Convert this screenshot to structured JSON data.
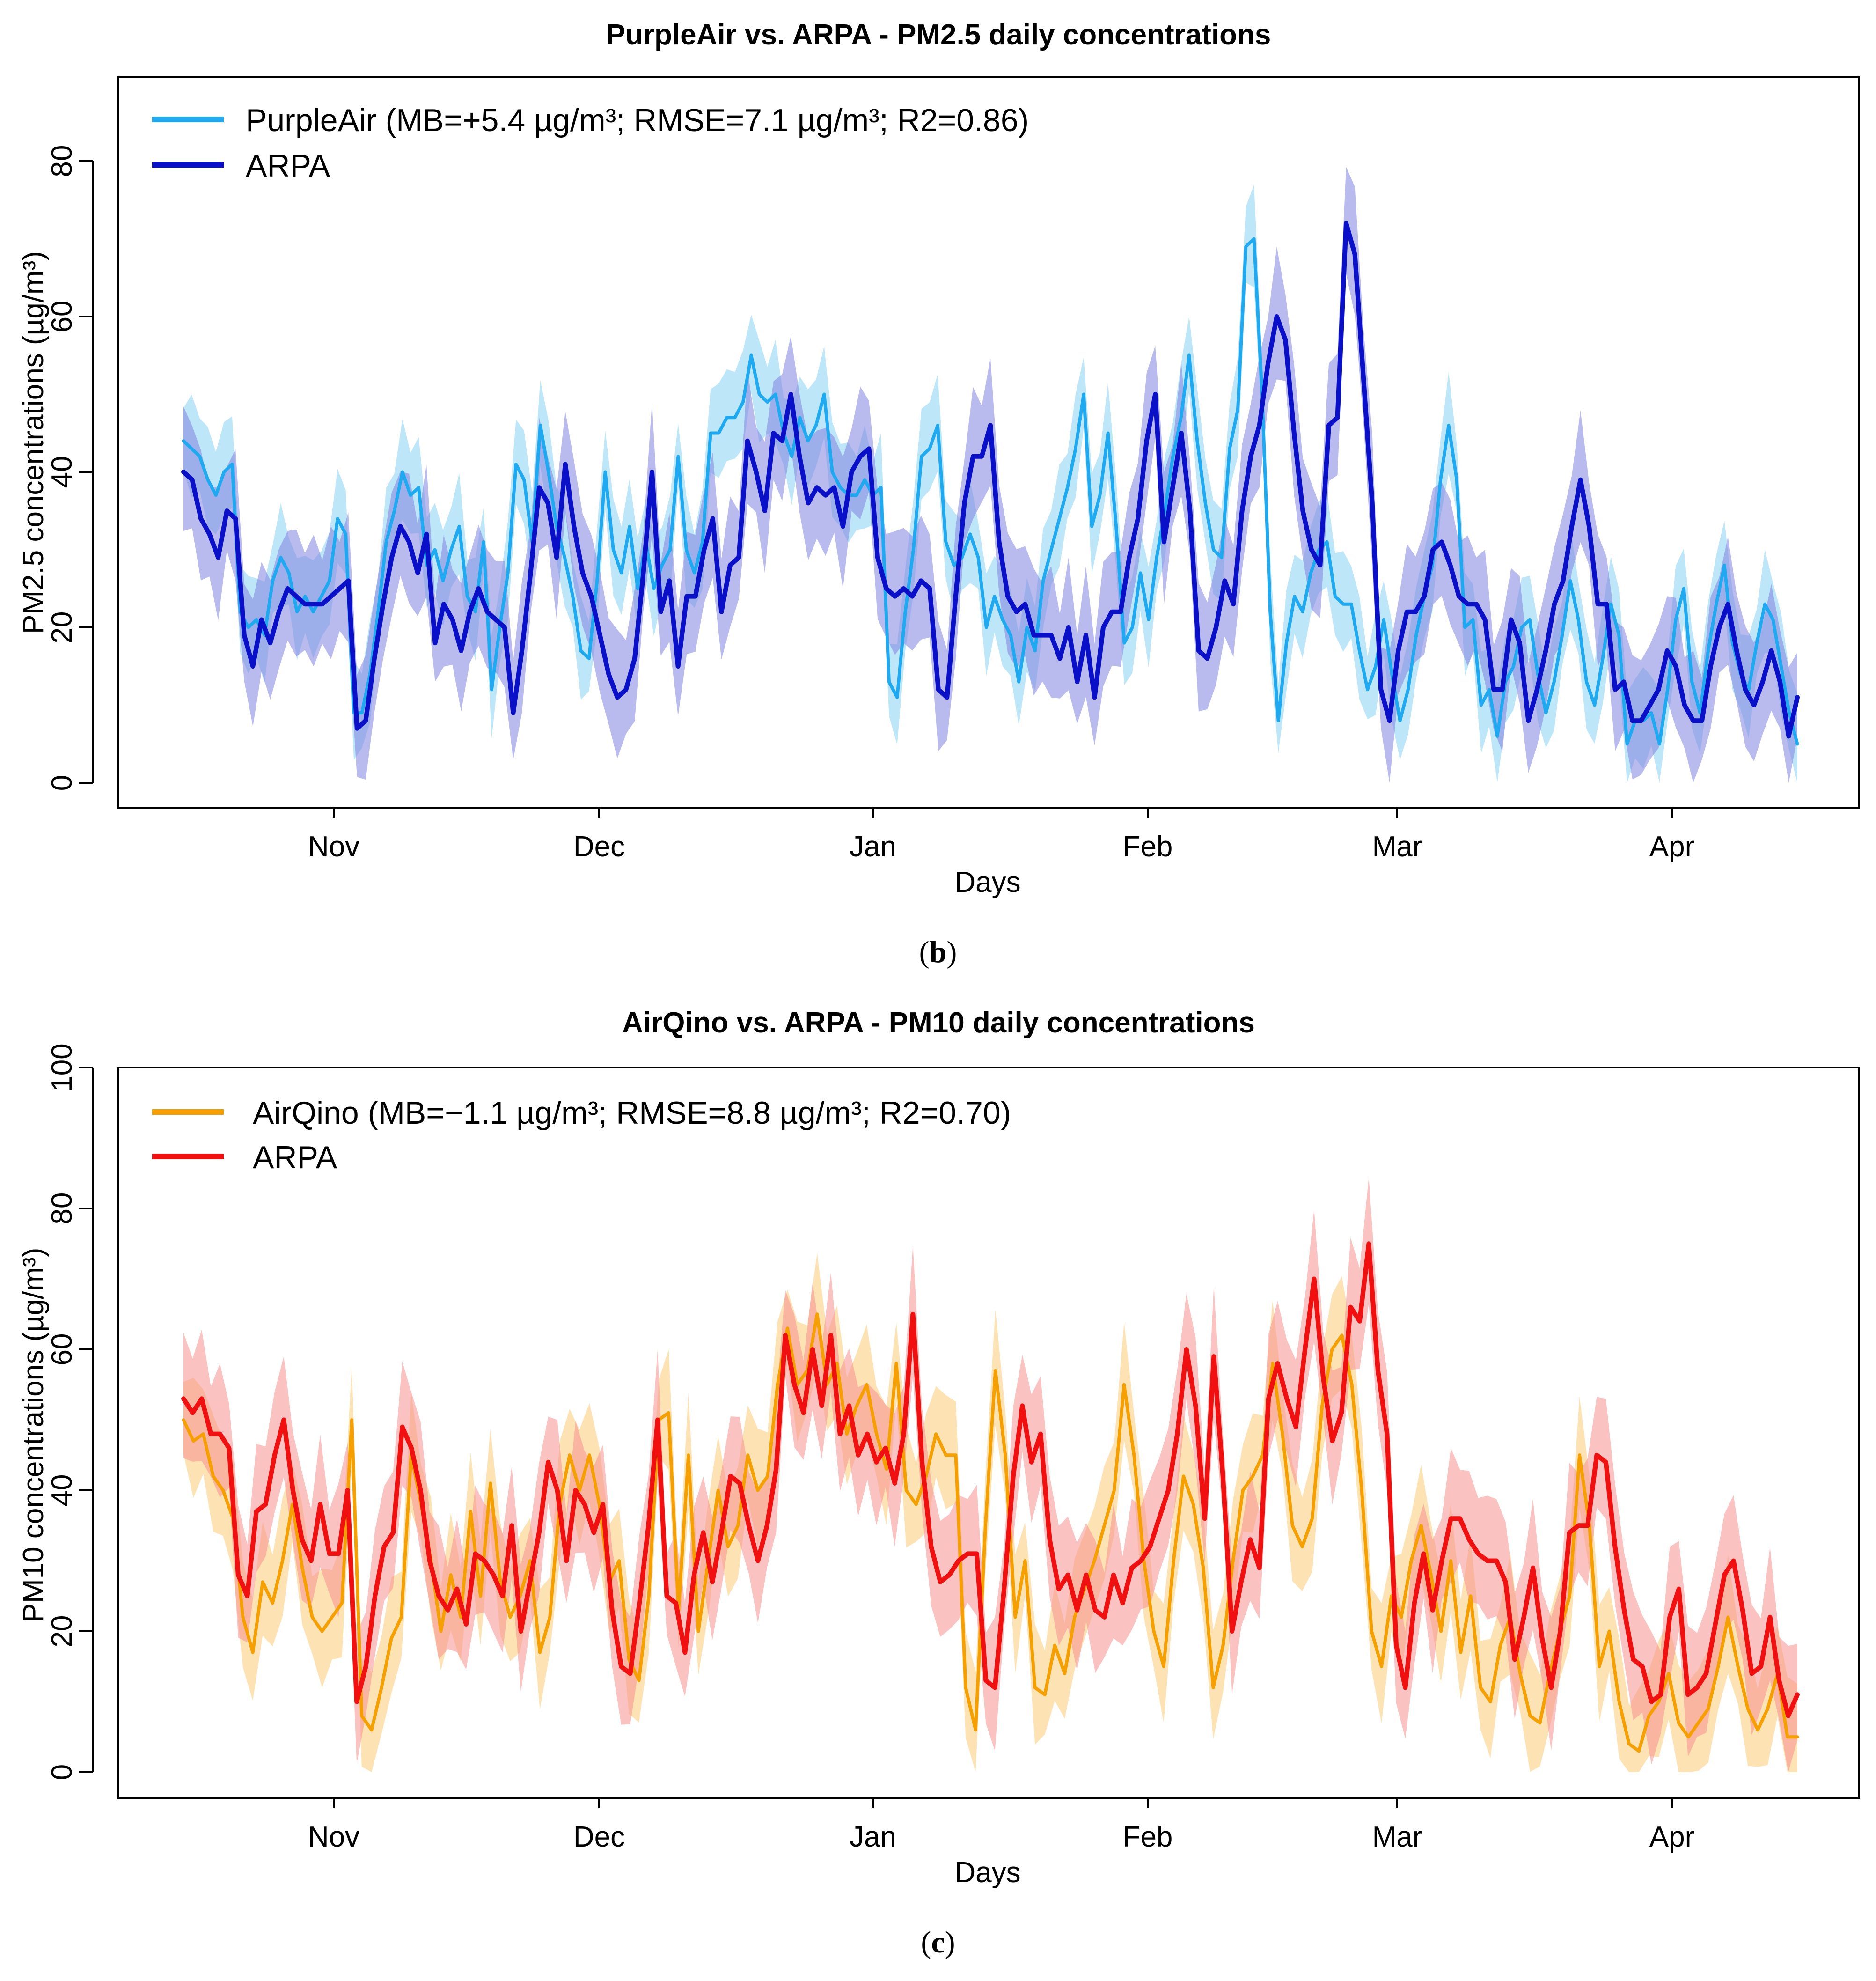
{
  "chart_data": [
    {
      "type": "line",
      "title": "PurpleAir vs. ARPA - PM2.5 daily concentrations",
      "xlabel": "Days",
      "ylabel": "PM2.5 concentrations (µg/m³)",
      "caption_label": "b",
      "ylim": [
        0,
        90
      ],
      "y_ticks": [
        "0",
        "20",
        "40",
        "60",
        "80"
      ],
      "x_ticks": [
        "Nov",
        "Dec",
        "Jan",
        "Feb",
        "Mar",
        "Apr"
      ],
      "legend": {
        "position": "top-left"
      },
      "series": [
        {
          "name": "PurpleAir",
          "legend_label": "PurpleAir (MB=+5.4 µg/m³; RMSE=7.1 µg/m³; R2=0.86)",
          "color": "#1EA9F0",
          "band_color": "#A8DDF7",
          "band_width": 7,
          "values": [
            44,
            43,
            42,
            39,
            37,
            40,
            41,
            22,
            20,
            21,
            19,
            26,
            29,
            27,
            22,
            24,
            22,
            24,
            26,
            34,
            32,
            9,
            9,
            14,
            22,
            31,
            35,
            40,
            37,
            38,
            28,
            30,
            26,
            30,
            33,
            24,
            22,
            31,
            12,
            20,
            27,
            41,
            39,
            31,
            46,
            40,
            33,
            29,
            24,
            17,
            16,
            26,
            40,
            30,
            27,
            33,
            25,
            31,
            25,
            28,
            30,
            42,
            30,
            27,
            31,
            45,
            45,
            47,
            47,
            49,
            55,
            50,
            49,
            50,
            45,
            42,
            47,
            44,
            46,
            50,
            40,
            38,
            37,
            37,
            39,
            37,
            38,
            13,
            11,
            22,
            30,
            42,
            43,
            46,
            31,
            28,
            29,
            32,
            29,
            20,
            24,
            21,
            19,
            13,
            20,
            17,
            26,
            30,
            34,
            38,
            43,
            50,
            33,
            37,
            45,
            33,
            18,
            20,
            27,
            21,
            29,
            35,
            42,
            47,
            55,
            44,
            36,
            30,
            29,
            43,
            48,
            69,
            70,
            50,
            22,
            8,
            18,
            24,
            22,
            27,
            30,
            31,
            24,
            23,
            23,
            17,
            12,
            15,
            21,
            14,
            8,
            12,
            19,
            24,
            28,
            39,
            46,
            39,
            20,
            21,
            10,
            12,
            6,
            13,
            15,
            20,
            21,
            14,
            9,
            13,
            19,
            26,
            21,
            13,
            10,
            16,
            23,
            19,
            5,
            8
          ],
          "extra_values": [
            8,
            9,
            5,
            12,
            21,
            25,
            13,
            9,
            17,
            23,
            28,
            18,
            14,
            12,
            18,
            23,
            21,
            15,
            9,
            5
          ]
        },
        {
          "name": "ARPA",
          "legend_label": "ARPA",
          "color": "#0A10C8",
          "band_color": "#7F82E0",
          "band_width": 9,
          "values": [
            40,
            39,
            34,
            32,
            29,
            35,
            34,
            19,
            15,
            21,
            18,
            22,
            25,
            24,
            23,
            23,
            23,
            24,
            25,
            26,
            7,
            8,
            16,
            23,
            29,
            33,
            31,
            27,
            32,
            18,
            23,
            21,
            17,
            22,
            25,
            22,
            21,
            20,
            9,
            17,
            27,
            38,
            36,
            29,
            41,
            33,
            27,
            24,
            19,
            14,
            11,
            12,
            16,
            27,
            40,
            22,
            26,
            15,
            24,
            24,
            30,
            34,
            22,
            28,
            29,
            44,
            40,
            35,
            45,
            44,
            50,
            42,
            36,
            38,
            37,
            38,
            33,
            40,
            42,
            43,
            29,
            25,
            24,
            25,
            24,
            26,
            25,
            12,
            11,
            24,
            36,
            42,
            42,
            46,
            31,
            24,
            22,
            23,
            19,
            19,
            19,
            16,
            20,
            13,
            19,
            11,
            20,
            22,
            22,
            29,
            34,
            44,
            50,
            31,
            38,
            45,
            35,
            17,
            16,
            20,
            26,
            23,
            35,
            42,
            46,
            54,
            60,
            57,
            45,
            35,
            30,
            28,
            46,
            47,
            72,
            68,
            52,
            36,
            12,
            8,
            17,
            22,
            22,
            24,
            30,
            31,
            28,
            24,
            23,
            23,
            21,
            12,
            12,
            21,
            18,
            8,
            12,
            17,
            23,
            26,
            33,
            39,
            33,
            23,
            23,
            12,
            13,
            8,
            8,
            10,
            12,
            17,
            15,
            10,
            8,
            8,
            15,
            20,
            23,
            17,
            12,
            10,
            13,
            17,
            13,
            6,
            11
          ],
          "extra_values": []
        }
      ]
    },
    {
      "type": "line",
      "title": "AirQino vs. ARPA - PM10 daily concentrations",
      "xlabel": "Days",
      "ylabel": "PM10 concentrations (µg/m³)",
      "caption_label": "c",
      "ylim": [
        0,
        100
      ],
      "y_ticks": [
        "0",
        "20",
        "40",
        "60",
        "80",
        "100"
      ],
      "x_ticks": [
        "Nov",
        "Dec",
        "Jan",
        "Feb",
        "Mar",
        "Apr"
      ],
      "legend": {
        "position": "top-left"
      },
      "series": [
        {
          "name": "AirQino",
          "legend_label": "AirQino (MB=−1.1 µg/m³; RMSE=8.8 µg/m³; R2=0.70)",
          "color": "#F5A000",
          "band_color": "#FCD99A",
          "band_width": 9,
          "values": [
            50,
            47,
            48,
            42,
            40,
            36,
            22,
            17,
            27,
            24,
            30,
            38,
            29,
            22,
            20,
            22,
            24,
            50,
            8,
            6,
            12,
            19,
            22,
            45,
            38,
            30,
            20,
            28,
            22,
            37,
            25,
            41,
            27,
            22,
            25,
            30,
            17,
            22,
            38,
            45,
            40,
            45,
            38,
            27,
            30,
            16,
            13,
            25,
            50,
            51,
            23,
            45,
            20,
            30,
            40,
            32,
            35,
            45,
            40,
            42,
            55,
            63,
            55,
            57,
            65,
            55,
            58,
            48,
            52,
            55,
            48,
            43,
            58,
            40,
            38,
            42,
            48,
            45,
            45,
            12,
            6,
            35,
            57,
            45,
            22,
            30,
            12,
            11,
            18,
            14,
            22,
            26,
            30,
            35,
            40,
            55,
            45,
            30,
            20,
            15,
            30,
            42,
            38,
            29,
            12,
            18,
            30,
            40,
            42,
            45,
            58,
            48,
            35,
            32,
            36,
            52,
            60,
            62,
            55,
            40,
            20,
            15,
            25,
            22,
            30,
            35,
            28,
            20,
            30,
            17,
            25,
            12,
            10,
            18,
            22,
            14,
            8,
            7,
            14,
            20,
            25,
            45,
            35,
            15,
            20,
            10,
            4,
            3,
            8,
            10,
            14,
            7,
            5,
            7,
            9,
            15,
            22,
            15,
            9,
            6,
            9,
            14,
            5,
            5
          ]
        },
        {
          "name": "ARPA",
          "legend_label": "ARPA",
          "color": "#F01010",
          "band_color": "#F89090",
          "band_width": 10,
          "values": [
            53,
            51,
            53,
            48,
            48,
            46,
            28,
            25,
            37,
            38,
            45,
            50,
            40,
            33,
            30,
            38,
            31,
            31,
            40,
            10,
            15,
            25,
            32,
            34,
            49,
            46,
            40,
            30,
            25,
            23,
            26,
            21,
            31,
            30,
            28,
            25,
            35,
            20,
            27,
            34,
            44,
            40,
            30,
            40,
            38,
            34,
            38,
            23,
            15,
            14,
            24,
            35,
            50,
            25,
            24,
            17,
            28,
            34,
            27,
            34,
            42,
            41,
            35,
            30,
            35,
            43,
            62,
            55,
            51,
            60,
            52,
            62,
            48,
            52,
            45,
            48,
            44,
            46,
            41,
            48,
            65,
            44,
            32,
            27,
            28,
            30,
            31,
            31,
            13,
            12,
            26,
            42,
            52,
            44,
            48,
            33,
            26,
            28,
            23,
            28,
            23,
            22,
            28,
            24,
            29,
            30,
            32,
            36,
            40,
            48,
            60,
            52,
            36,
            59,
            42,
            20,
            27,
            33,
            29,
            53,
            58,
            53,
            49,
            60,
            70,
            56,
            47,
            51,
            66,
            64,
            75,
            57,
            48,
            18,
            12,
            24,
            31,
            23,
            30,
            36,
            36,
            33,
            31,
            30,
            30,
            27,
            16,
            22,
            29,
            19,
            12,
            20,
            34,
            35,
            35,
            45,
            44,
            32,
            23,
            16,
            15,
            10,
            11,
            22,
            26,
            11,
            12,
            14,
            21,
            28,
            30,
            23,
            14,
            15,
            22,
            13,
            8,
            11
          ]
        }
      ]
    }
  ]
}
